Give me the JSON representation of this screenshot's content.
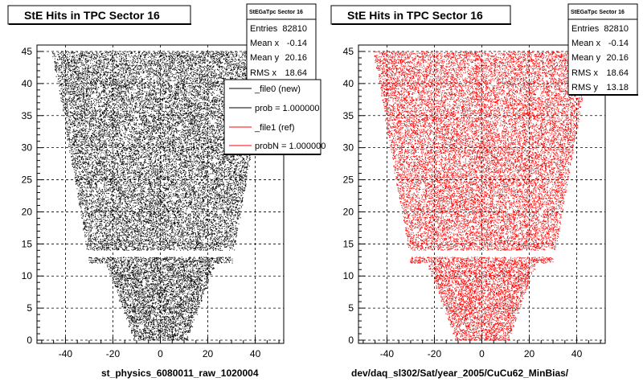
{
  "chart_data": [
    {
      "type": "scatter",
      "title": "StE Hits in TPC Sector 16",
      "xlabel": "st_physics_6080011_raw_1020004",
      "ylabel": "",
      "xlim": [
        -52,
        52
      ],
      "ylim": [
        -0.5,
        46
      ],
      "xticks": [
        "-40",
        "-20",
        "0",
        "20",
        "40"
      ],
      "yticks": [
        "0",
        "5",
        "10",
        "15",
        "20",
        "25",
        "30",
        "35",
        "40",
        "45"
      ],
      "grid": true,
      "marker_color": "#000000",
      "stats": {
        "name": "StEGaTpc Sector 16",
        "entries": "82810",
        "mean_x": "-0.14",
        "mean_y": "20.16",
        "rms_x": "18.64"
      },
      "legend": {
        "position": "top-right",
        "entries": [
          {
            "label": "_file0 (new)",
            "color": "#000000"
          },
          {
            "label": "prob = 1.000000",
            "color": "#000000"
          },
          {
            "label": "_file1 (ref)",
            "color": "#ff0000"
          },
          {
            "label": "probN = 1.000000",
            "color": "#ff0000"
          }
        ]
      }
    },
    {
      "type": "scatter",
      "title": "StE Hits in TPC Sector 16",
      "xlabel": "dev/daq_sl302/Sat/year_2005/CuCu62_MinBias/",
      "ylabel": "",
      "xlim": [
        -52,
        52
      ],
      "ylim": [
        -0.5,
        46
      ],
      "xticks": [
        "-40",
        "-20",
        "0",
        "20",
        "40"
      ],
      "yticks": [
        "0",
        "5",
        "10",
        "15",
        "20",
        "25",
        "30",
        "35",
        "40",
        "45"
      ],
      "grid": true,
      "marker_color": "#ff0000",
      "stats": {
        "name": "StEGaTpc Sector 16",
        "entries": "82810",
        "mean_x": "-0.14",
        "mean_y": "20.16",
        "rms_x": "18.64",
        "rms_y": "13.18"
      }
    }
  ],
  "labels": {
    "entries": "Entries",
    "mean_x": "Mean x",
    "mean_y": "Mean y",
    "rms_x": "RMS x",
    "rms_y": "RMS y"
  }
}
